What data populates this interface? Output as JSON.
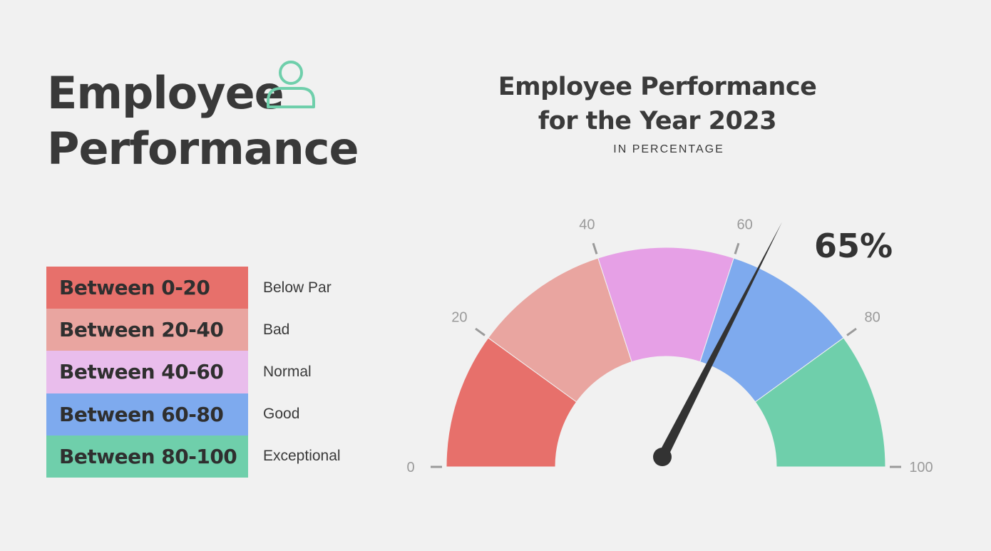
{
  "header": {
    "title_line1": "Employee",
    "title_line2": "Performance",
    "icon": "person-icon",
    "icon_color": "#6fcfab"
  },
  "legend": [
    {
      "range": "Between 0-20",
      "label": "Below Par",
      "color": "#e7706b"
    },
    {
      "range": "Between 20-40",
      "label": "Bad",
      "color": "#e9a5a0"
    },
    {
      "range": "Between 40-60",
      "label": "Normal",
      "color": "#e9bdec"
    },
    {
      "range": "Between 60-80",
      "label": "Good",
      "color": "#7eaaee"
    },
    {
      "range": "Between 80-100",
      "label": "Exceptional",
      "color": "#6fcfab"
    }
  ],
  "chart_data": {
    "type": "gauge",
    "title": "Employee Performance for the Year 2023",
    "title_line1": "Employee Performance",
    "title_line2": "for the Year 2023",
    "subtitle": "IN PERCENTAGE",
    "range": [
      0,
      100
    ],
    "value": 65,
    "value_label": "65%",
    "ticks": [
      0,
      20,
      40,
      60,
      80,
      100
    ],
    "tick_labels": [
      "0",
      "20",
      "40",
      "60",
      "80",
      "100"
    ],
    "segments": [
      {
        "from": 0,
        "to": 20,
        "color": "#e7706b"
      },
      {
        "from": 20,
        "to": 40,
        "color": "#e9a5a0"
      },
      {
        "from": 40,
        "to": 60,
        "color": "#e6a0e6"
      },
      {
        "from": 60,
        "to": 80,
        "color": "#7eaaee"
      },
      {
        "from": 80,
        "to": 100,
        "color": "#6fcfab"
      }
    ],
    "needle_color": "#333333"
  }
}
